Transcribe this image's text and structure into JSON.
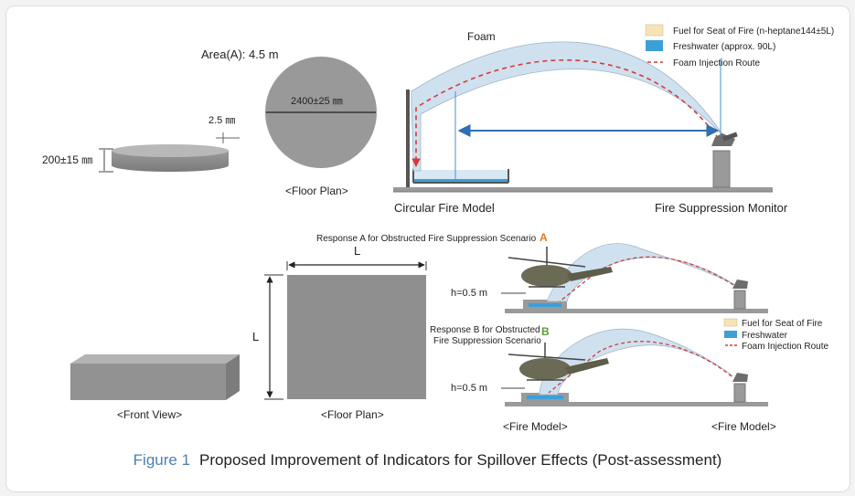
{
  "top": {
    "area_label": "Area(A): 4.5 m",
    "diameter_label": "2400±25 ㎜",
    "thickness_label": "2.5 ㎜",
    "height_label": "200±15 ㎜",
    "floor_plan_label": "<Floor Plan>",
    "foam_label": "Foam",
    "fire_model_label": "Circular Fire Model",
    "monitor_label": "Fire Suppression Monitor",
    "legend": [
      {
        "label": "Fuel for Seat of Fire (n-heptane144±5L)",
        "color": "#f7e3b5"
      },
      {
        "label": "Freshwater (approx. 90L)",
        "color": "#3b9fd8"
      },
      {
        "label": "Foam Injection Route",
        "color": "#d23c3c"
      }
    ]
  },
  "bottom": {
    "l_top": "L",
    "l_side": "L",
    "front_view_label": "<Front View>",
    "floor_plan_label": "<Floor Plan>",
    "response_a": "Response A for Obstructed Fire Suppression Scenario",
    "response_a_letter": "A",
    "response_b_line1": "Response B for Obstructed",
    "response_b_line2": "Fire Suppression Scenario",
    "response_b_letter": "B",
    "h_label_a": "h=0.5 m",
    "h_label_b": "h=0.5 m",
    "fire_model_left": "<Fire Model>",
    "fire_model_right": "<Fire Model>",
    "legend": [
      {
        "label": "Fuel for Seat of Fire",
        "color": "#f7e3b5"
      },
      {
        "label": "Freshwater",
        "color": "#3b9fd8"
      },
      {
        "label": "Foam Injection Route",
        "color": "#d23c3c"
      }
    ]
  },
  "caption": {
    "number": "Figure 1",
    "text": "Proposed Improvement of Indicators for Spillover Effects (Post-assessment)"
  },
  "colors": {
    "accent_a": "#e07b26",
    "accent_b": "#5a9a3a",
    "caption_blue": "#4f7fb5",
    "foam": "#cfe1ef",
    "route": "#d23c3c"
  }
}
